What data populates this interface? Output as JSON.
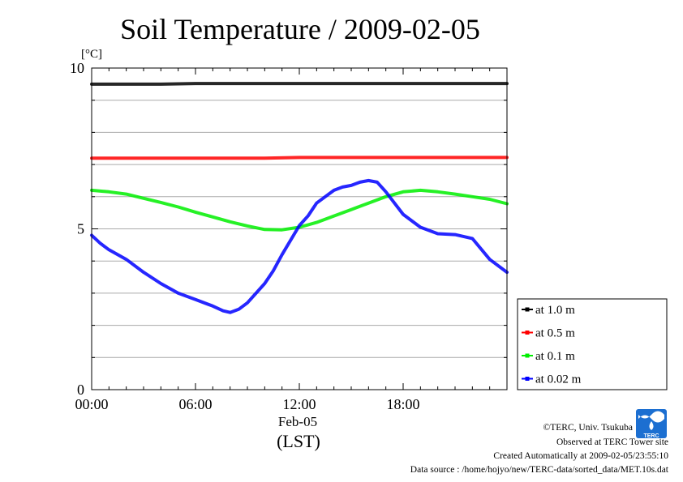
{
  "chart_data": {
    "type": "line",
    "title": "Soil Temperature / 2009-02-05",
    "yunit": "[°C]",
    "ylim": [
      0,
      10
    ],
    "yticks": [
      0,
      5,
      10
    ],
    "xlim": [
      0,
      24
    ],
    "xticks": [
      {
        "x": 0,
        "label": "00:00"
      },
      {
        "x": 6,
        "label": "06:00"
      },
      {
        "x": 12,
        "label": "12:00"
      },
      {
        "x": 18,
        "label": "18:00"
      }
    ],
    "date_label": "Feb-05",
    "xlabel": "(LST)",
    "grid": true,
    "legend": "right",
    "series": [
      {
        "name": "at 1.0 m",
        "color": "#000000",
        "x": [
          0,
          2,
          4,
          6,
          8,
          10,
          12,
          14,
          16,
          18,
          20,
          22,
          24
        ],
        "y": [
          9.5,
          9.5,
          9.5,
          9.52,
          9.52,
          9.52,
          9.52,
          9.52,
          9.52,
          9.52,
          9.52,
          9.52,
          9.52
        ]
      },
      {
        "name": "at 0.5 m",
        "color": "#ff0000",
        "x": [
          0,
          2,
          4,
          6,
          8,
          10,
          12,
          14,
          16,
          18,
          20,
          22,
          24
        ],
        "y": [
          7.2,
          7.2,
          7.2,
          7.2,
          7.2,
          7.2,
          7.22,
          7.22,
          7.22,
          7.22,
          7.22,
          7.22,
          7.22
        ]
      },
      {
        "name": "at 0.1 m",
        "color": "#00ee00",
        "x": [
          0,
          1,
          2,
          3,
          4,
          5,
          6,
          7,
          8,
          9,
          10,
          11,
          12,
          13,
          14,
          15,
          16,
          17,
          18,
          19,
          20,
          21,
          22,
          23,
          24
        ],
        "y": [
          6.2,
          6.15,
          6.08,
          5.95,
          5.82,
          5.68,
          5.52,
          5.37,
          5.22,
          5.09,
          4.98,
          4.97,
          5.05,
          5.2,
          5.4,
          5.6,
          5.8,
          6.0,
          6.15,
          6.2,
          6.15,
          6.08,
          6.0,
          5.92,
          5.78
        ]
      },
      {
        "name": "at 0.02 m",
        "color": "#0000ff",
        "x": [
          0,
          0.5,
          1,
          2,
          3,
          4,
          5,
          6,
          7,
          7.6,
          8,
          8.5,
          9,
          10,
          10.5,
          11,
          12,
          12.5,
          13,
          14,
          14.5,
          15,
          15.5,
          16,
          16.5,
          17,
          17.5,
          18,
          18.5,
          19,
          20,
          21,
          22,
          23,
          24
        ],
        "y": [
          4.8,
          4.55,
          4.35,
          4.05,
          3.65,
          3.3,
          3.0,
          2.8,
          2.6,
          2.45,
          2.4,
          2.5,
          2.7,
          3.3,
          3.7,
          4.2,
          5.1,
          5.4,
          5.8,
          6.2,
          6.3,
          6.35,
          6.45,
          6.5,
          6.45,
          6.15,
          5.8,
          5.45,
          5.25,
          5.05,
          4.85,
          4.82,
          4.7,
          4.05,
          3.65
        ]
      }
    ]
  },
  "credits": {
    "copyright": "©TERC, Univ. Tsukuba",
    "observed": "Observed at TERC Tower site",
    "created": "Created Automatically at 2009-02-05/23:55:10",
    "source": "Data source : /home/hojyo/new/TERC-data/sorted_data/MET.10s.dat",
    "logo_text": "TERC"
  }
}
